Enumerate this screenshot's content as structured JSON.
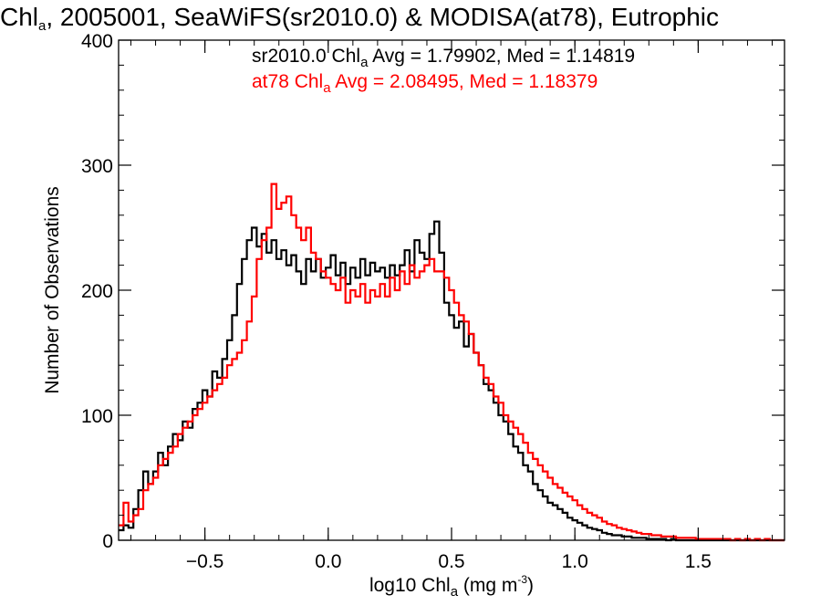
{
  "title": {
    "prefix": "Chl",
    "prefix_sub": "a",
    "rest": ", 2005001, SeaWiFS(sr2010.0) & MODISA(at78), Eutrophic"
  },
  "legend": [
    {
      "pre": "sr2010.0 Chl",
      "sub": "a",
      "post": " Avg = 1.79902, Med = 1.14819",
      "color": "#000000"
    },
    {
      "pre": "at78 Chl",
      "sub": "a",
      "post": " Avg = 2.08495, Med = 1.18379",
      "color": "#ff0000"
    }
  ],
  "xlabel": {
    "pre": "log10 Chl",
    "sub": "a",
    "mid": " (mg m",
    "sup": "-3",
    "post": ")"
  },
  "ylabel": "Number of Observations",
  "chart_data": {
    "type": "line",
    "style": "step histogram",
    "xlim": [
      -0.85,
      1.85
    ],
    "ylim": [
      0,
      400
    ],
    "xticks": [
      -0.5,
      0.0,
      0.5,
      1.0,
      1.5
    ],
    "xtick_labels": [
      "−0.5",
      "0.0",
      "0.5",
      "1.0",
      "1.5"
    ],
    "yticks": [
      0,
      100,
      200,
      300,
      400
    ],
    "ytick_labels": [
      "0",
      "100",
      "200",
      "300",
      "400"
    ],
    "bin_width": 0.01,
    "series": [
      {
        "name": "sr2010.0",
        "color": "#000000",
        "points": [
          [
            -0.85,
            8
          ],
          [
            -0.83,
            12
          ],
          [
            -0.81,
            10
          ],
          [
            -0.79,
            25
          ],
          [
            -0.77,
            40
          ],
          [
            -0.75,
            55
          ],
          [
            -0.73,
            45
          ],
          [
            -0.71,
            55
          ],
          [
            -0.69,
            70
          ],
          [
            -0.67,
            60
          ],
          [
            -0.65,
            75
          ],
          [
            -0.63,
            85
          ],
          [
            -0.61,
            80
          ],
          [
            -0.59,
            95
          ],
          [
            -0.57,
            90
          ],
          [
            -0.55,
            105
          ],
          [
            -0.53,
            110
          ],
          [
            -0.51,
            120
          ],
          [
            -0.49,
            115
          ],
          [
            -0.47,
            135
          ],
          [
            -0.45,
            130
          ],
          [
            -0.43,
            145
          ],
          [
            -0.41,
            160
          ],
          [
            -0.39,
            180
          ],
          [
            -0.37,
            205
          ],
          [
            -0.35,
            225
          ],
          [
            -0.33,
            240
          ],
          [
            -0.31,
            250
          ],
          [
            -0.29,
            235
          ],
          [
            -0.27,
            245
          ],
          [
            -0.25,
            230
          ],
          [
            -0.23,
            240
          ],
          [
            -0.21,
            225
          ],
          [
            -0.19,
            232
          ],
          [
            -0.17,
            220
          ],
          [
            -0.15,
            228
          ],
          [
            -0.13,
            215
          ],
          [
            -0.11,
            205
          ],
          [
            -0.09,
            225
          ],
          [
            -0.07,
            215
          ],
          [
            -0.05,
            225
          ],
          [
            -0.03,
            210
          ],
          [
            -0.01,
            218
          ],
          [
            0.01,
            228
          ],
          [
            0.03,
            212
          ],
          [
            0.05,
            222
          ],
          [
            0.07,
            205
          ],
          [
            0.09,
            218
          ],
          [
            0.11,
            210
          ],
          [
            0.13,
            225
          ],
          [
            0.15,
            212
          ],
          [
            0.17,
            222
          ],
          [
            0.19,
            215
          ],
          [
            0.21,
            218
          ],
          [
            0.23,
            210
          ],
          [
            0.25,
            220
          ],
          [
            0.27,
            212
          ],
          [
            0.29,
            220
          ],
          [
            0.31,
            232
          ],
          [
            0.33,
            215
          ],
          [
            0.35,
            240
          ],
          [
            0.37,
            230
          ],
          [
            0.39,
            225
          ],
          [
            0.41,
            245
          ],
          [
            0.43,
            255
          ],
          [
            0.45,
            230
          ],
          [
            0.47,
            190
          ],
          [
            0.49,
            180
          ],
          [
            0.51,
            170
          ],
          [
            0.53,
            175
          ],
          [
            0.55,
            155
          ],
          [
            0.57,
            165
          ],
          [
            0.59,
            150
          ],
          [
            0.61,
            140
          ],
          [
            0.63,
            125
          ],
          [
            0.65,
            120
          ],
          [
            0.67,
            110
          ],
          [
            0.69,
            100
          ],
          [
            0.71,
            95
          ],
          [
            0.73,
            85
          ],
          [
            0.75,
            75
          ],
          [
            0.77,
            70
          ],
          [
            0.79,
            60
          ],
          [
            0.81,
            55
          ],
          [
            0.83,
            45
          ],
          [
            0.85,
            40
          ],
          [
            0.87,
            35
          ],
          [
            0.89,
            30
          ],
          [
            0.91,
            28
          ],
          [
            0.93,
            25
          ],
          [
            0.95,
            22
          ],
          [
            0.97,
            18
          ],
          [
            0.99,
            16
          ],
          [
            1.01,
            14
          ],
          [
            1.03,
            12
          ],
          [
            1.05,
            10
          ],
          [
            1.07,
            9
          ],
          [
            1.09,
            8
          ],
          [
            1.11,
            6
          ],
          [
            1.13,
            5
          ],
          [
            1.15,
            4
          ],
          [
            1.17,
            4
          ],
          [
            1.19,
            3
          ],
          [
            1.21,
            3
          ],
          [
            1.23,
            2
          ],
          [
            1.25,
            2
          ],
          [
            1.27,
            2
          ],
          [
            1.29,
            1
          ],
          [
            1.31,
            1
          ],
          [
            1.33,
            1
          ],
          [
            1.35,
            1
          ],
          [
            1.37,
            0
          ],
          [
            1.39,
            1
          ],
          [
            1.41,
            0
          ],
          [
            1.43,
            0
          ],
          [
            1.45,
            0
          ],
          [
            1.47,
            0
          ],
          [
            1.49,
            0
          ],
          [
            1.55,
            0
          ],
          [
            1.65,
            0
          ],
          [
            1.75,
            0
          ],
          [
            1.85,
            0
          ]
        ]
      },
      {
        "name": "at78",
        "color": "#ff0000",
        "points": [
          [
            -0.85,
            12
          ],
          [
            -0.83,
            30
          ],
          [
            -0.81,
            15
          ],
          [
            -0.79,
            20
          ],
          [
            -0.77,
            25
          ],
          [
            -0.75,
            40
          ],
          [
            -0.73,
            45
          ],
          [
            -0.71,
            50
          ],
          [
            -0.69,
            60
          ],
          [
            -0.67,
            65
          ],
          [
            -0.65,
            70
          ],
          [
            -0.63,
            75
          ],
          [
            -0.61,
            85
          ],
          [
            -0.59,
            90
          ],
          [
            -0.57,
            95
          ],
          [
            -0.55,
            100
          ],
          [
            -0.53,
            105
          ],
          [
            -0.51,
            110
          ],
          [
            -0.49,
            115
          ],
          [
            -0.47,
            120
          ],
          [
            -0.45,
            125
          ],
          [
            -0.43,
            130
          ],
          [
            -0.41,
            140
          ],
          [
            -0.39,
            145
          ],
          [
            -0.37,
            150
          ],
          [
            -0.35,
            160
          ],
          [
            -0.33,
            175
          ],
          [
            -0.31,
            195
          ],
          [
            -0.29,
            225
          ],
          [
            -0.27,
            240
          ],
          [
            -0.25,
            250
          ],
          [
            -0.23,
            285
          ],
          [
            -0.21,
            265
          ],
          [
            -0.19,
            270
          ],
          [
            -0.17,
            275
          ],
          [
            -0.15,
            260
          ],
          [
            -0.13,
            250
          ],
          [
            -0.11,
            240
          ],
          [
            -0.09,
            250
          ],
          [
            -0.07,
            230
          ],
          [
            -0.05,
            225
          ],
          [
            -0.03,
            215
          ],
          [
            -0.01,
            210
          ],
          [
            0.01,
            205
          ],
          [
            0.03,
            200
          ],
          [
            0.05,
            210
          ],
          [
            0.07,
            190
          ],
          [
            0.09,
            200
          ],
          [
            0.11,
            195
          ],
          [
            0.13,
            205
          ],
          [
            0.15,
            190
          ],
          [
            0.17,
            200
          ],
          [
            0.19,
            195
          ],
          [
            0.21,
            205
          ],
          [
            0.23,
            195
          ],
          [
            0.25,
            210
          ],
          [
            0.27,
            200
          ],
          [
            0.29,
            215
          ],
          [
            0.31,
            205
          ],
          [
            0.33,
            220
          ],
          [
            0.35,
            210
          ],
          [
            0.37,
            215
          ],
          [
            0.39,
            220
          ],
          [
            0.41,
            225
          ],
          [
            0.43,
            215
          ],
          [
            0.45,
            215
          ],
          [
            0.47,
            210
          ],
          [
            0.49,
            200
          ],
          [
            0.51,
            190
          ],
          [
            0.53,
            180
          ],
          [
            0.55,
            175
          ],
          [
            0.57,
            165
          ],
          [
            0.59,
            150
          ],
          [
            0.61,
            140
          ],
          [
            0.63,
            130
          ],
          [
            0.65,
            125
          ],
          [
            0.67,
            115
          ],
          [
            0.69,
            110
          ],
          [
            0.71,
            100
          ],
          [
            0.73,
            95
          ],
          [
            0.75,
            90
          ],
          [
            0.77,
            85
          ],
          [
            0.79,
            78
          ],
          [
            0.81,
            70
          ],
          [
            0.83,
            65
          ],
          [
            0.85,
            60
          ],
          [
            0.87,
            55
          ],
          [
            0.89,
            50
          ],
          [
            0.91,
            45
          ],
          [
            0.93,
            42
          ],
          [
            0.95,
            38
          ],
          [
            0.97,
            35
          ],
          [
            0.99,
            32
          ],
          [
            1.01,
            28
          ],
          [
            1.03,
            25
          ],
          [
            1.05,
            22
          ],
          [
            1.07,
            20
          ],
          [
            1.09,
            18
          ],
          [
            1.11,
            15
          ],
          [
            1.13,
            13
          ],
          [
            1.15,
            12
          ],
          [
            1.17,
            10
          ],
          [
            1.19,
            9
          ],
          [
            1.21,
            8
          ],
          [
            1.23,
            7
          ],
          [
            1.25,
            6
          ],
          [
            1.27,
            5
          ],
          [
            1.29,
            5
          ],
          [
            1.31,
            4
          ],
          [
            1.33,
            4
          ],
          [
            1.35,
            3
          ],
          [
            1.37,
            3
          ],
          [
            1.39,
            3
          ],
          [
            1.41,
            2
          ],
          [
            1.43,
            2
          ],
          [
            1.45,
            2
          ],
          [
            1.47,
            2
          ],
          [
            1.49,
            1
          ],
          [
            1.51,
            1
          ],
          [
            1.53,
            1
          ],
          [
            1.55,
            1
          ],
          [
            1.57,
            1
          ],
          [
            1.59,
            1
          ],
          [
            1.61,
            1
          ],
          [
            1.63,
            0
          ],
          [
            1.65,
            1
          ],
          [
            1.67,
            0
          ],
          [
            1.69,
            1
          ],
          [
            1.71,
            0
          ],
          [
            1.73,
            1
          ],
          [
            1.75,
            0
          ],
          [
            1.77,
            1
          ],
          [
            1.79,
            0
          ],
          [
            1.81,
            0
          ],
          [
            1.83,
            0
          ],
          [
            1.85,
            0
          ]
        ]
      }
    ]
  }
}
